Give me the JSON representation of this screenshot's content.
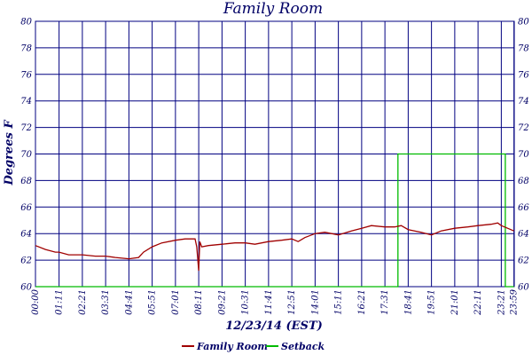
{
  "chart_data": {
    "type": "line",
    "title": "Family Room",
    "xlabel": "12/23/14 (EST)",
    "ylabel": "Degrees F",
    "ylim": [
      60,
      80
    ],
    "yticks": [
      60,
      62,
      64,
      66,
      68,
      70,
      72,
      74,
      76,
      78,
      80
    ],
    "xlim_minutes": [
      0,
      1440
    ],
    "xtick_labels": [
      "00:00",
      "01:11",
      "02:21",
      "03:31",
      "04:41",
      "05:51",
      "07:01",
      "08:11",
      "09:21",
      "10:31",
      "11:41",
      "12:51",
      "14:01",
      "15:11",
      "16:21",
      "17:31",
      "18:41",
      "19:51",
      "21:01",
      "22:11",
      "23:21",
      "23:59"
    ],
    "grid": true,
    "legend_position": "bottom",
    "colors": {
      "grid": "#000080",
      "text": "#000066",
      "family_room": "#a00000",
      "setback": "#00bb00"
    },
    "series": [
      {
        "name": "Family Room",
        "x": [
          "00:00",
          "00:30",
          "01:00",
          "01:11",
          "01:40",
          "02:21",
          "03:00",
          "03:31",
          "04:00",
          "04:41",
          "05:10",
          "05:25",
          "05:51",
          "06:20",
          "07:01",
          "07:30",
          "08:00",
          "08:05",
          "08:11",
          "08:14",
          "08:20",
          "08:40",
          "09:21",
          "10:00",
          "10:31",
          "11:00",
          "11:41",
          "12:20",
          "12:51",
          "13:10",
          "13:30",
          "14:01",
          "14:30",
          "15:11",
          "15:50",
          "16:21",
          "16:50",
          "17:31",
          "18:00",
          "18:20",
          "18:41",
          "19:20",
          "19:51",
          "20:20",
          "21:01",
          "21:40",
          "22:11",
          "22:50",
          "23:10",
          "23:21",
          "23:40",
          "23:59"
        ],
        "y": [
          63.1,
          62.8,
          62.6,
          62.6,
          62.4,
          62.4,
          62.3,
          62.3,
          62.2,
          62.1,
          62.2,
          62.6,
          63.0,
          63.3,
          63.5,
          63.6,
          63.6,
          63.0,
          61.2,
          63.4,
          63.0,
          63.1,
          63.2,
          63.3,
          63.3,
          63.2,
          63.4,
          63.5,
          63.6,
          63.4,
          63.7,
          64.0,
          64.1,
          63.9,
          64.2,
          64.4,
          64.6,
          64.5,
          64.5,
          64.6,
          64.3,
          64.1,
          63.9,
          64.2,
          64.4,
          64.5,
          64.6,
          64.7,
          64.8,
          64.6,
          64.4,
          64.2
        ]
      },
      {
        "name": "Setback",
        "x": [
          "00:00",
          "18:10",
          "18:10",
          "23:33",
          "23:33",
          "23:59"
        ],
        "y": [
          60,
          60,
          70,
          70,
          60,
          60
        ]
      }
    ]
  }
}
